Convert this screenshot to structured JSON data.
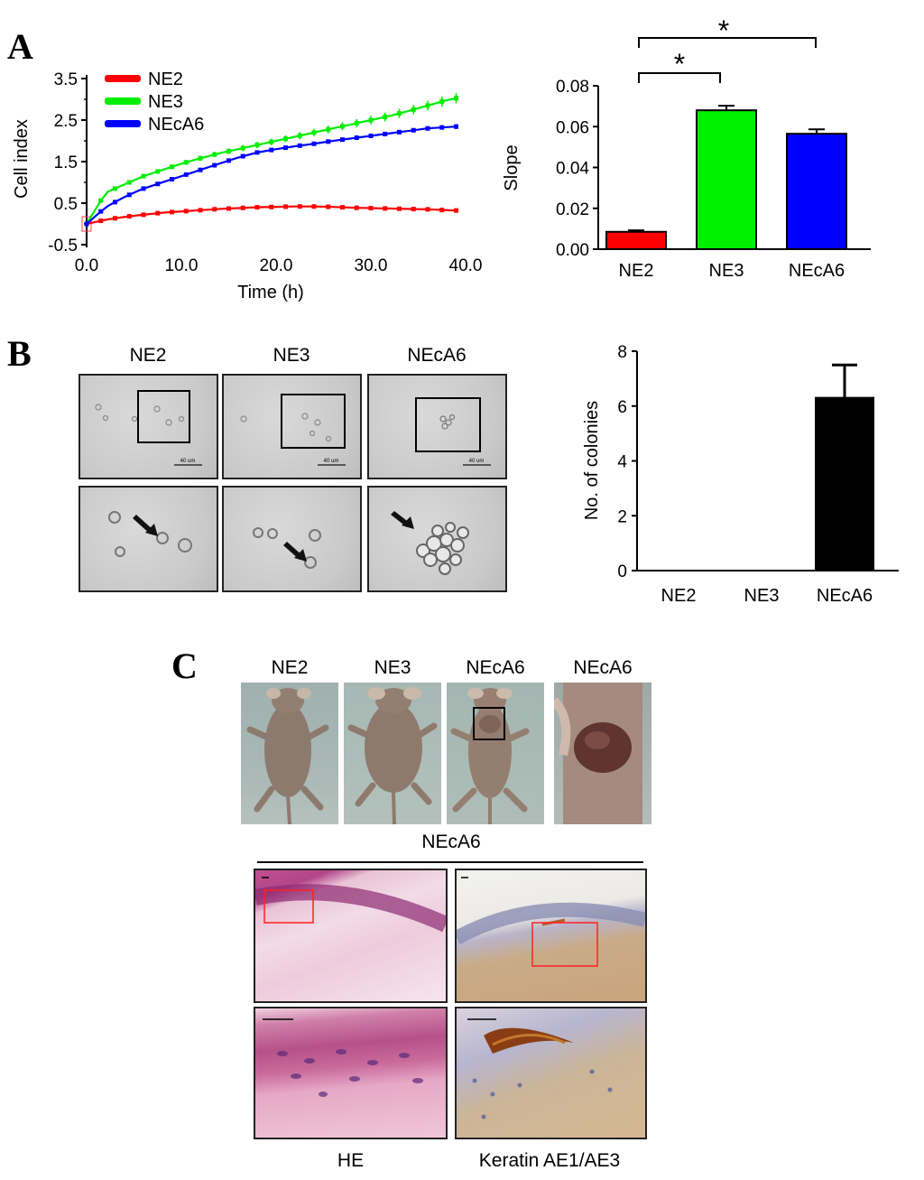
{
  "panel_labels": {
    "a": "A",
    "b": "B",
    "c": "C"
  },
  "panelA": {
    "line_chart": {
      "xlabel": "Time (h)",
      "ylabel": "Cell index",
      "xticks": [
        "0.0",
        "10.0",
        "20.0",
        "30.0",
        "40.0"
      ],
      "yticks": [
        "-0.5",
        "0.5",
        "1.5",
        "2.5",
        "3.5"
      ],
      "legend": [
        "NE2",
        "NE3",
        "NEcA6"
      ]
    },
    "bar_chart": {
      "ylabel": "Slope",
      "yticks": [
        "0.00",
        "0.02",
        "0.04",
        "0.06",
        "0.08"
      ],
      "categories": [
        "NE2",
        "NE3",
        "NEcA6"
      ],
      "sig_marks": [
        "*",
        "*"
      ]
    }
  },
  "panelB": {
    "columns": [
      "NE2",
      "NE3",
      "NEcA6"
    ],
    "scale_bar_text": "40 um",
    "bar_chart": {
      "ylabel": "No. of colonies",
      "yticks": [
        "0",
        "2",
        "4",
        "6",
        "8"
      ],
      "categories": [
        "NE2",
        "NE3",
        "NEcA6"
      ]
    }
  },
  "panelC": {
    "columns": [
      "NE2",
      "NE3",
      "NEcA6",
      "NEcA6"
    ],
    "group_label": "NEcA6",
    "stain_labels": [
      "HE",
      "Keratin AE1/AE3"
    ]
  },
  "colors": {
    "ne2": "#ff0000",
    "ne3": "#00ee00",
    "neca6": "#0000ff",
    "black": "#000000"
  },
  "chart_data": [
    {
      "type": "line",
      "xlabel": "Time (h)",
      "ylabel": "Cell index",
      "xlim": [
        0,
        40
      ],
      "ylim": [
        -0.5,
        3.5
      ],
      "x": [
        0,
        2,
        4,
        6,
        8,
        10,
        12,
        14,
        16,
        18,
        20,
        22,
        24,
        26,
        28,
        30,
        32,
        34,
        36,
        38,
        39.5
      ],
      "series": [
        {
          "name": "NE2",
          "color": "#ff0000",
          "values": [
            0.0,
            0.1,
            0.17,
            0.22,
            0.27,
            0.3,
            0.33,
            0.36,
            0.38,
            0.4,
            0.41,
            0.42,
            0.42,
            0.41,
            0.39,
            0.38,
            0.37,
            0.36,
            0.35,
            0.33,
            0.32
          ]
        },
        {
          "name": "NE3",
          "color": "#00ee00",
          "values": [
            0.0,
            0.75,
            0.95,
            1.15,
            1.3,
            1.45,
            1.58,
            1.7,
            1.8,
            1.9,
            2.0,
            2.1,
            2.2,
            2.3,
            2.4,
            2.5,
            2.6,
            2.72,
            2.85,
            2.98,
            3.05
          ]
        },
        {
          "name": "NEcA6",
          "color": "#0000ff",
          "values": [
            0.0,
            0.4,
            0.65,
            0.85,
            1.0,
            1.15,
            1.3,
            1.45,
            1.6,
            1.72,
            1.8,
            1.87,
            1.93,
            2.0,
            2.06,
            2.12,
            2.18,
            2.24,
            2.3,
            2.33,
            2.35
          ]
        }
      ]
    },
    {
      "type": "bar",
      "ylabel": "Slope",
      "ylim": [
        0,
        0.08
      ],
      "categories": [
        "NE2",
        "NE3",
        "NEcA6"
      ],
      "values": [
        0.0085,
        0.068,
        0.0565
      ],
      "errors": [
        0.0007,
        0.0022,
        0.0022
      ],
      "colors": [
        "#ff0000",
        "#00ee00",
        "#0000ff"
      ],
      "significance": [
        [
          "NE2",
          "NE3",
          "*"
        ],
        [
          "NE2",
          "NEcA6",
          "*"
        ]
      ]
    },
    {
      "type": "bar",
      "ylabel": "No. of colonies",
      "ylim": [
        0,
        8
      ],
      "categories": [
        "NE2",
        "NE3",
        "NEcA6"
      ],
      "values": [
        0,
        0,
        6.3
      ],
      "errors": [
        0,
        0,
        1.2
      ],
      "colors": [
        "#000000",
        "#000000",
        "#000000"
      ]
    }
  ]
}
